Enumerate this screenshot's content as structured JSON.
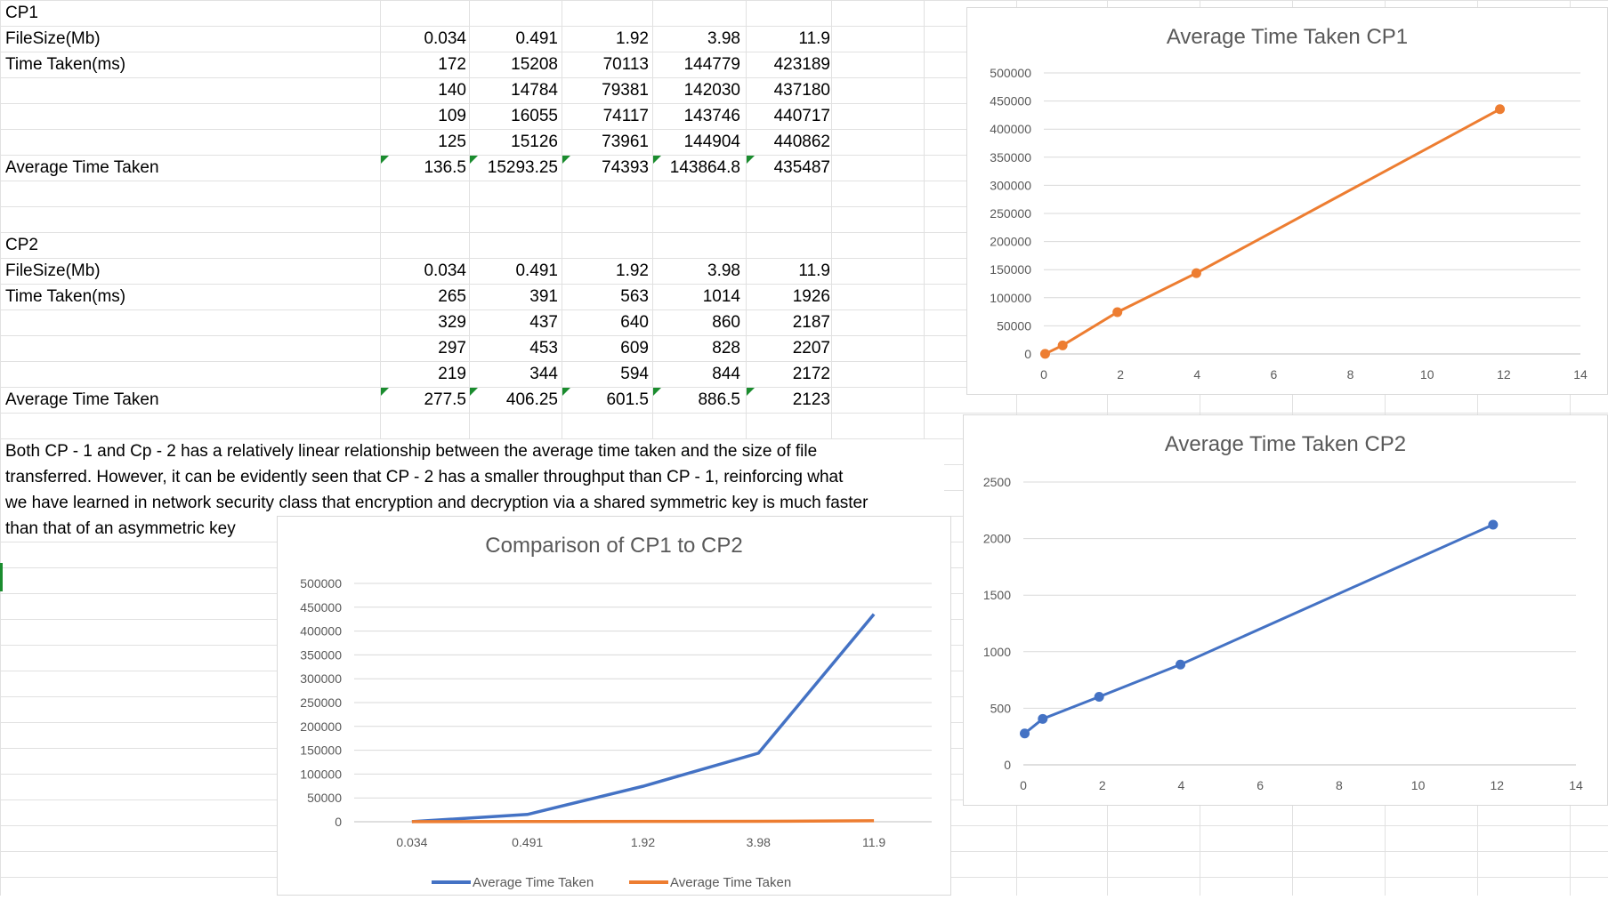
{
  "cp1": {
    "label": "CP1",
    "filesize_label": "FileSize(Mb)",
    "time_label": "Time Taken(ms)",
    "avg_label": "Average Time Taken",
    "sizes": [
      "0.034",
      "0.491",
      "1.92",
      "3.98",
      "11.9"
    ],
    "runs": [
      [
        "172",
        "15208",
        "70113",
        "144779",
        "423189"
      ],
      [
        "140",
        "14784",
        "79381",
        "142030",
        "437180"
      ],
      [
        "109",
        "16055",
        "74117",
        "143746",
        "440717"
      ],
      [
        "125",
        "15126",
        "73961",
        "144904",
        "440862"
      ]
    ],
    "avg": [
      "136.5",
      "15293.25",
      "74393",
      "143864.8",
      "435487"
    ]
  },
  "cp2": {
    "label": "CP2",
    "filesize_label": "FileSize(Mb)",
    "time_label": "Time Taken(ms)",
    "avg_label": "Average Time Taken",
    "sizes": [
      "0.034",
      "0.491",
      "1.92",
      "3.98",
      "11.9"
    ],
    "runs": [
      [
        "265",
        "391",
        "563",
        "1014",
        "1926"
      ],
      [
        "329",
        "437",
        "640",
        "860",
        "2187"
      ],
      [
        "297",
        "453",
        "609",
        "828",
        "2207"
      ],
      [
        "219",
        "344",
        "594",
        "844",
        "2172"
      ]
    ],
    "avg": [
      "277.5",
      "406.25",
      "601.5",
      "886.5",
      "2123"
    ]
  },
  "conclusion": [
    "Both CP - 1 and Cp - 2 has a relatively linear relationship between the average time taken and the size of file",
    "transferred. However, it can be evidently seen that CP - 2 has a smaller throughput than CP - 1, reinforcing what",
    "we have learned in network security class that encryption and decryption via a shared symmetric key is much faster",
    "than that of an asymmetric key"
  ],
  "chart_data": [
    {
      "type": "scatter",
      "title": "Average Time Taken CP1",
      "series": [
        {
          "color": "#ed7d31",
          "x": [
            0.034,
            0.491,
            1.92,
            3.98,
            11.9
          ],
          "y": [
            136.5,
            15293.25,
            74393,
            143864.8,
            435487
          ]
        }
      ],
      "xlim": [
        0,
        14
      ],
      "xticks": [
        "0",
        "2",
        "4",
        "6",
        "8",
        "10",
        "12",
        "14"
      ],
      "ylim": [
        0,
        500000
      ],
      "yticks": [
        "0",
        "50000",
        "100000",
        "150000",
        "200000",
        "250000",
        "300000",
        "350000",
        "400000",
        "450000",
        "500000"
      ],
      "grid": true,
      "legend": "none"
    },
    {
      "type": "scatter",
      "title": "Average Time Taken CP2",
      "series": [
        {
          "color": "#4472c4",
          "x": [
            0.034,
            0.491,
            1.92,
            3.98,
            11.9
          ],
          "y": [
            277.5,
            406.25,
            601.5,
            886.5,
            2123
          ]
        }
      ],
      "xlim": [
        0,
        14
      ],
      "xticks": [
        "0",
        "2",
        "4",
        "6",
        "8",
        "10",
        "12",
        "14"
      ],
      "ylim": [
        0,
        2500
      ],
      "yticks": [
        "0",
        "500",
        "1000",
        "1500",
        "2000",
        "2500"
      ],
      "grid": true,
      "legend": "none"
    },
    {
      "type": "line",
      "title": "Comparison of CP1 to CP2",
      "categories": [
        "0.034",
        "0.491",
        "1.92",
        "3.98",
        "11.9"
      ],
      "series": [
        {
          "name": "Average Time Taken",
          "color": "#4472c4",
          "values": [
            136.5,
            15293.25,
            74393,
            143864.8,
            435487
          ]
        },
        {
          "name": "Average Time Taken",
          "color": "#ed7d31",
          "values": [
            277.5,
            406.25,
            601.5,
            886.5,
            2123
          ]
        }
      ],
      "ylim": [
        0,
        500000
      ],
      "yticks": [
        "0",
        "50000",
        "100000",
        "150000",
        "200000",
        "250000",
        "300000",
        "350000",
        "400000",
        "450000",
        "500000"
      ],
      "grid": true,
      "legend": "bottom"
    }
  ]
}
